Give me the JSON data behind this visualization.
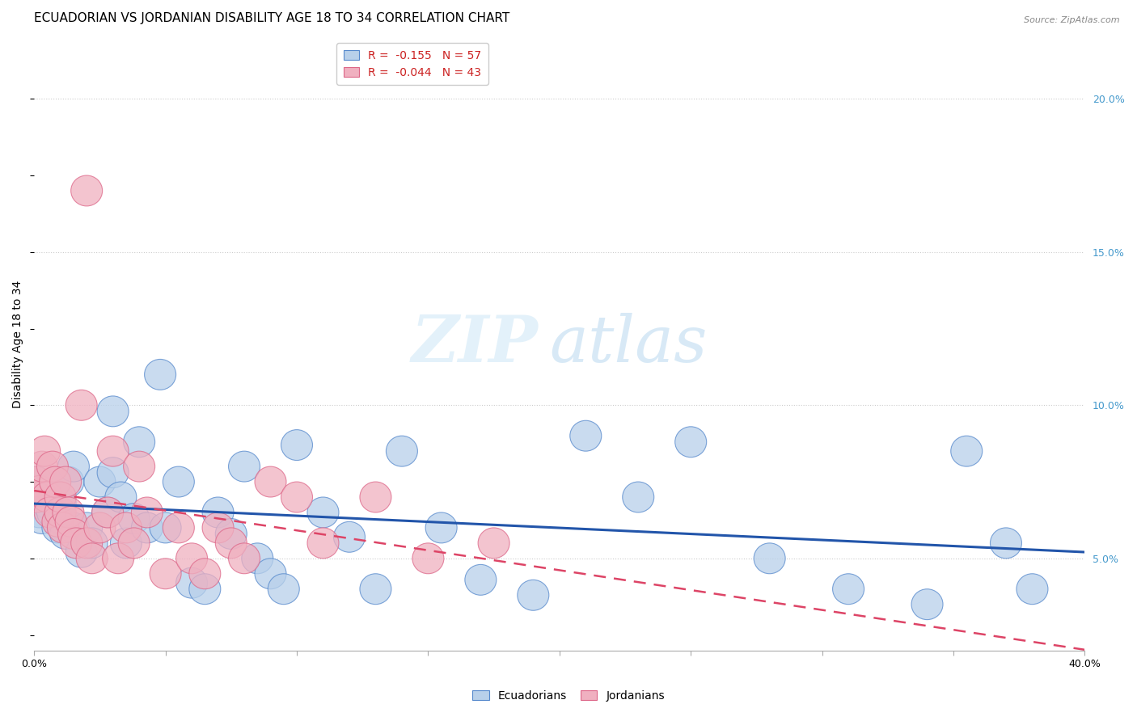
{
  "title": "ECUADORIAN VS JORDANIAN DISABILITY AGE 18 TO 34 CORRELATION CHART",
  "source": "Source: ZipAtlas.com",
  "ylabel_label": "Disability Age 18 to 34",
  "watermark_zip": "ZIP",
  "watermark_atlas": "atlas",
  "xlim": [
    0.0,
    0.4
  ],
  "ylim": [
    0.02,
    0.22
  ],
  "ytick_vals": [
    0.05,
    0.1,
    0.15,
    0.2
  ],
  "ytick_labels_right": [
    "5.0%",
    "10.0%",
    "15.0%",
    "20.0%"
  ],
  "xtick_vals": [
    0.0,
    0.05,
    0.1,
    0.15,
    0.2,
    0.25,
    0.3,
    0.35,
    0.4
  ],
  "xtick_labels": [
    "0.0%",
    "",
    "",
    "",
    "",
    "",
    "",
    "",
    "40.0%"
  ],
  "blue_fill": "#b8d0ea",
  "blue_edge": "#5588cc",
  "pink_fill": "#f0b0c0",
  "pink_edge": "#dd6688",
  "blue_line_color": "#2255aa",
  "pink_line_color": "#dd4466",
  "legend_blue_R": "R =  -0.155",
  "legend_blue_N": "N = 57",
  "legend_pink_R": "R =  -0.044",
  "legend_pink_N": "N = 43",
  "blue_x": [
    0.001,
    0.001,
    0.001,
    0.002,
    0.003,
    0.004,
    0.005,
    0.006,
    0.007,
    0.008,
    0.009,
    0.01,
    0.01,
    0.012,
    0.013,
    0.015,
    0.015,
    0.018,
    0.02,
    0.022,
    0.025,
    0.028,
    0.03,
    0.03,
    0.033,
    0.035,
    0.038,
    0.04,
    0.043,
    0.048,
    0.05,
    0.055,
    0.06,
    0.065,
    0.07,
    0.075,
    0.08,
    0.085,
    0.09,
    0.095,
    0.1,
    0.11,
    0.12,
    0.13,
    0.14,
    0.155,
    0.17,
    0.19,
    0.21,
    0.23,
    0.25,
    0.28,
    0.31,
    0.34,
    0.355,
    0.37,
    0.38
  ],
  "blue_y": [
    0.075,
    0.07,
    0.068,
    0.065,
    0.063,
    0.072,
    0.068,
    0.07,
    0.065,
    0.075,
    0.06,
    0.068,
    0.063,
    0.058,
    0.075,
    0.08,
    0.06,
    0.052,
    0.06,
    0.055,
    0.075,
    0.065,
    0.098,
    0.078,
    0.07,
    0.055,
    0.063,
    0.088,
    0.06,
    0.11,
    0.06,
    0.075,
    0.042,
    0.04,
    0.065,
    0.058,
    0.08,
    0.05,
    0.045,
    0.04,
    0.087,
    0.065,
    0.057,
    0.04,
    0.085,
    0.06,
    0.043,
    0.038,
    0.09,
    0.07,
    0.088,
    0.05,
    0.04,
    0.035,
    0.085,
    0.055,
    0.04
  ],
  "pink_x": [
    0.001,
    0.001,
    0.002,
    0.003,
    0.004,
    0.005,
    0.006,
    0.007,
    0.008,
    0.009,
    0.01,
    0.01,
    0.011,
    0.012,
    0.013,
    0.014,
    0.015,
    0.016,
    0.018,
    0.02,
    0.022,
    0.025,
    0.028,
    0.03,
    0.032,
    0.035,
    0.038,
    0.04,
    0.043,
    0.05,
    0.055,
    0.06,
    0.065,
    0.07,
    0.075,
    0.08,
    0.09,
    0.1,
    0.11,
    0.13,
    0.15,
    0.175,
    0.02
  ],
  "pink_y": [
    0.075,
    0.07,
    0.072,
    0.08,
    0.085,
    0.07,
    0.065,
    0.08,
    0.075,
    0.062,
    0.065,
    0.07,
    0.06,
    0.075,
    0.065,
    0.062,
    0.058,
    0.055,
    0.1,
    0.055,
    0.05,
    0.06,
    0.065,
    0.085,
    0.05,
    0.06,
    0.055,
    0.08,
    0.065,
    0.045,
    0.06,
    0.05,
    0.045,
    0.06,
    0.055,
    0.05,
    0.075,
    0.07,
    0.055,
    0.07,
    0.05,
    0.055,
    0.17
  ],
  "background_color": "#ffffff",
  "grid_color": "#cccccc",
  "grid_style": "dotted",
  "title_fontsize": 11,
  "axis_label_fontsize": 10,
  "tick_fontsize": 9,
  "right_ytick_color": "#4499cc",
  "source_color": "#888888"
}
